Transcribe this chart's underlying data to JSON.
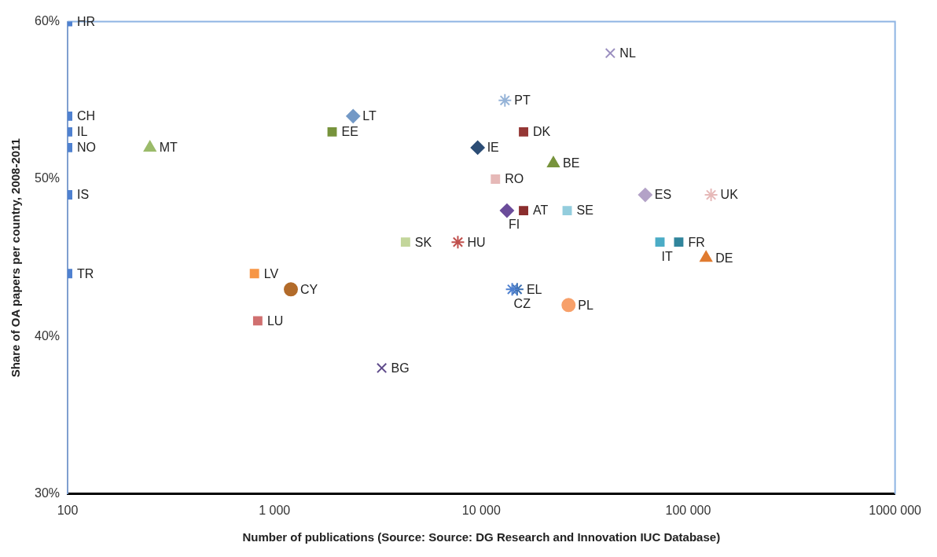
{
  "chart_data": {
    "type": "scatter",
    "xlabel": "Number of publications (Source: Source: DG Research and Innovation IUC Database)",
    "ylabel": "Share of OA papers per country, 2008-2011",
    "log": "x",
    "grid": false,
    "legend": false,
    "xlim": [
      100,
      1000000
    ],
    "xticks": [
      100,
      {
        "value": 1000,
        "label": "1 000"
      },
      {
        "value": 10000,
        "label": "10 000"
      },
      {
        "value": 100000,
        "label": "100 000"
      },
      {
        "value": 1000000,
        "label": "1000 000"
      }
    ],
    "ylim": [
      30,
      60
    ],
    "yticks": [
      {
        "value": 30,
        "label": "30%"
      },
      {
        "value": 40,
        "label": "40%"
      },
      {
        "value": 50,
        "label": "50%"
      },
      {
        "value": 60,
        "label": "60%"
      }
    ],
    "series": [
      {
        "name": "HR",
        "color": "#4f81d0",
        "marker": "square",
        "x": [
          100
        ],
        "values": [
          60
        ]
      },
      {
        "name": "CH",
        "color": "#4f81d0",
        "marker": "square",
        "x": [
          100
        ],
        "values": [
          54
        ]
      },
      {
        "name": "IL",
        "color": "#4f81d0",
        "marker": "square",
        "x": [
          100
        ],
        "values": [
          53
        ]
      },
      {
        "name": "NO",
        "color": "#4f81d0",
        "marker": "square",
        "x": [
          100
        ],
        "values": [
          52
        ]
      },
      {
        "name": "IS",
        "color": "#4f81d0",
        "marker": "square",
        "x": [
          100
        ],
        "values": [
          49
        ]
      },
      {
        "name": "TR",
        "color": "#4f81d0",
        "marker": "square",
        "x": [
          100
        ],
        "values": [
          44
        ]
      },
      {
        "name": "MT",
        "color": "#9bbb6a",
        "marker": "triangle",
        "x": [
          250
        ],
        "values": [
          52
        ]
      },
      {
        "name": "EE",
        "color": "#77933c",
        "marker": "square",
        "x": [
          1900
        ],
        "values": [
          53
        ]
      },
      {
        "name": "LT",
        "color": "#7399c6",
        "marker": "diamond",
        "x": [
          2400
        ],
        "values": [
          54
        ]
      },
      {
        "name": "LV",
        "color": "#f79646",
        "marker": "square",
        "x": [
          800
        ],
        "values": [
          44
        ]
      },
      {
        "name": "CY",
        "color": "#b26b2a",
        "marker": "circle",
        "x": [
          1200
        ],
        "values": [
          43
        ]
      },
      {
        "name": "LU",
        "color": "#d07070",
        "marker": "square",
        "x": [
          830
        ],
        "values": [
          41
        ]
      },
      {
        "name": "BG",
        "color": "#5f4b8b",
        "marker": "x",
        "x": [
          3300
        ],
        "values": [
          38
        ]
      },
      {
        "name": "SK",
        "color": "#c3d69b",
        "marker": "square",
        "x": [
          4300
        ],
        "values": [
          46
        ]
      },
      {
        "name": "HU",
        "color": "#c0504d",
        "marker": "cross",
        "x": [
          7700
        ],
        "values": [
          46
        ]
      },
      {
        "name": "IE",
        "color": "#2c4d75",
        "marker": "diamond",
        "x": [
          9600
        ],
        "values": [
          52
        ]
      },
      {
        "name": "RO",
        "color": "#e6b9b8",
        "marker": "square",
        "x": [
          11700
        ],
        "values": [
          50
        ]
      },
      {
        "name": "PT",
        "color": "#95b3d7",
        "marker": "cross",
        "x": [
          13000
        ],
        "values": [
          55
        ]
      },
      {
        "name": "DK",
        "color": "#953735",
        "marker": "square",
        "x": [
          16000
        ],
        "values": [
          53
        ]
      },
      {
        "name": "FI",
        "color": "#6b4c9a",
        "marker": "diamond",
        "x": [
          13300
        ],
        "values": [
          48
        ]
      },
      {
        "name": "AT",
        "color": "#8b2e2e",
        "marker": "square",
        "x": [
          16000
        ],
        "values": [
          48
        ]
      },
      {
        "name": "CZ",
        "color": "#4f81d0",
        "marker": "cross",
        "x": [
          14100
        ],
        "values": [
          43
        ]
      },
      {
        "name": "EL",
        "color": "#3c6fb0",
        "marker": "cross",
        "x": [
          14900
        ],
        "values": [
          43
        ]
      },
      {
        "name": "BE",
        "color": "#77933c",
        "marker": "triangle",
        "x": [
          22300
        ],
        "values": [
          51
        ]
      },
      {
        "name": "SE",
        "color": "#93cddd",
        "marker": "square",
        "x": [
          26000
        ],
        "values": [
          48
        ]
      },
      {
        "name": "PL",
        "color": "#f7a06a",
        "marker": "circle",
        "x": [
          26400
        ],
        "values": [
          42
        ]
      },
      {
        "name": "NL",
        "color": "#9b8fc0",
        "marker": "x",
        "x": [
          42000
        ],
        "values": [
          58
        ]
      },
      {
        "name": "ES",
        "color": "#b3a2c7",
        "marker": "diamond",
        "x": [
          62000
        ],
        "values": [
          49
        ]
      },
      {
        "name": "IT",
        "color": "#4bacc6",
        "marker": "square",
        "x": [
          73000
        ],
        "values": [
          46
        ]
      },
      {
        "name": "FR",
        "color": "#31859c",
        "marker": "square",
        "x": [
          90000
        ],
        "values": [
          46
        ]
      },
      {
        "name": "UK",
        "color": "#e6b9b8",
        "marker": "cross",
        "x": [
          129000
        ],
        "values": [
          49
        ]
      },
      {
        "name": "DE",
        "color": "#e07b30",
        "marker": "triangle",
        "x": [
          122000
        ],
        "values": [
          45
        ]
      }
    ]
  }
}
